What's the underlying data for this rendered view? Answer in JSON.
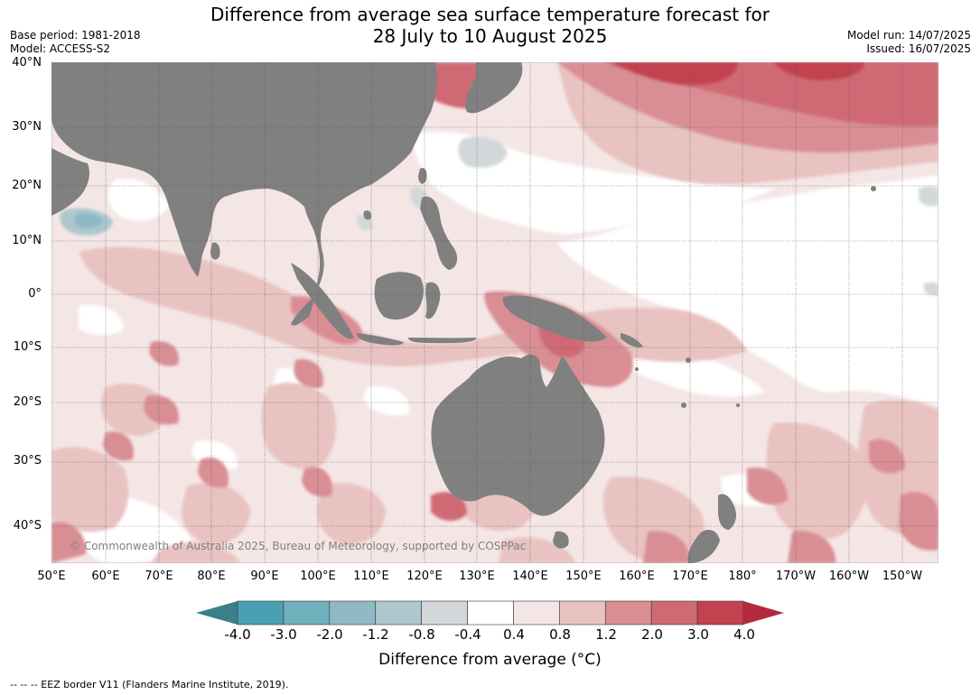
{
  "header": {
    "title_line1": "Difference from average sea surface temperature forecast for",
    "title_line2": "28 July to 10 August 2025",
    "base_period": "Base period: 1981-2018",
    "model": "Model: ACCESS-S2",
    "model_run": "Model run: 14/07/2025",
    "issued": "Issued: 16/07/2025"
  },
  "map": {
    "lat_labels": [
      "40°N",
      "30°N",
      "20°N",
      "10°N",
      "0°",
      "10°S",
      "20°S",
      "30°S",
      "40°S"
    ],
    "lon_labels": [
      "50°E",
      "60°E",
      "70°E",
      "80°E",
      "90°E",
      "100°E",
      "110°E",
      "120°E",
      "130°E",
      "140°E",
      "150°E",
      "160°E",
      "170°E",
      "180°",
      "170°W",
      "160°W",
      "150°W"
    ],
    "copyright": "© Commonwealth of Australia 2025, Bureau of Meteorology, supported by COSPPac",
    "land_color": "#808080"
  },
  "colorbar": {
    "labels": [
      "-4.0",
      "-3.0",
      "-2.0",
      "-1.2",
      "-0.8",
      "-0.4",
      "0.4",
      "0.8",
      "1.2",
      "2.0",
      "3.0",
      "4.0"
    ],
    "colors": [
      "#3b7f8a",
      "#4aa0b1",
      "#6fb0bd",
      "#8fbac5",
      "#adc7cc",
      "#d2d8da",
      "#ffffff",
      "#f4e6e5",
      "#e8c3c1",
      "#d98e94",
      "#cf6a75",
      "#c2424f",
      "#b12a3d"
    ],
    "title": "Difference from average (°C)"
  },
  "footnote": "--  --  -- EEZ border V11 (Flanders Marine Institute, 2019)."
}
